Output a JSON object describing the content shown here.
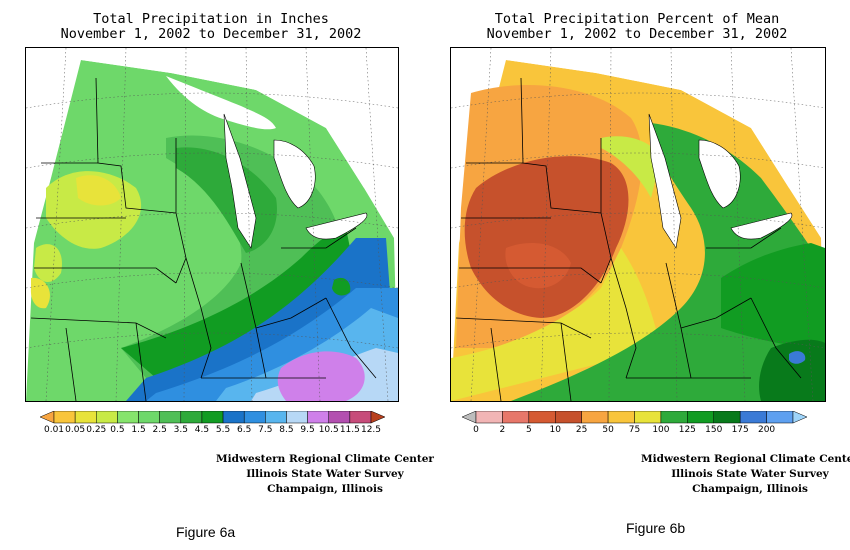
{
  "map_a": {
    "title_line1": "Total Precipitation in Inches",
    "title_line2": "November 1, 2002 to December 31, 2002",
    "legend": {
      "colors": [
        "#f7a541",
        "#f9c53b",
        "#e8e33a",
        "#c8ea46",
        "#86e46c",
        "#6ed86a",
        "#4fbf56",
        "#2eaa3a",
        "#119c22",
        "#1a73c8",
        "#2f8fe0",
        "#58b5ee",
        "#b7d8f6",
        "#cf80ea",
        "#b34fb0",
        "#c74c7a",
        "#b8401e"
      ],
      "labels": [
        "0.01",
        "0.05",
        "0.25",
        "0.5",
        "1.5",
        "2.5",
        "3.5",
        "4.5",
        "5.5",
        "6.5",
        "7.5",
        "8.5",
        "9.5",
        "10.5",
        "11.5",
        "12.5"
      ]
    },
    "credit_line1": "Midwestern Regional Climate Center",
    "credit_line2": "Illinois State Water Survey",
    "credit_line3": "Champaign, Illinois",
    "figure_label": "Figure 6a"
  },
  "map_b": {
    "title_line1": "Total Precipitation Percent of Mean",
    "title_line2": "November 1, 2002 to December 31, 2002",
    "legend": {
      "colors": [
        "#bdbdbd",
        "#f2b5b5",
        "#e7776a",
        "#d55a32",
        "#c6512c",
        "#f7a541",
        "#f9c53b",
        "#e8e33a",
        "#2eaa3a",
        "#119c22",
        "#087a1b",
        "#3a7ad6",
        "#5ea0f0",
        "#9ed4fa"
      ],
      "labels": [
        "0",
        "2",
        "5",
        "10",
        "25",
        "50",
        "75",
        "100",
        "125",
        "150",
        "175",
        "200"
      ]
    },
    "credit_line1": "Midwestern Regional Climate Center",
    "credit_line2": "Illinois State Water Survey",
    "credit_line3": "Champaign, Illinois",
    "figure_label": "Figure 6b"
  }
}
